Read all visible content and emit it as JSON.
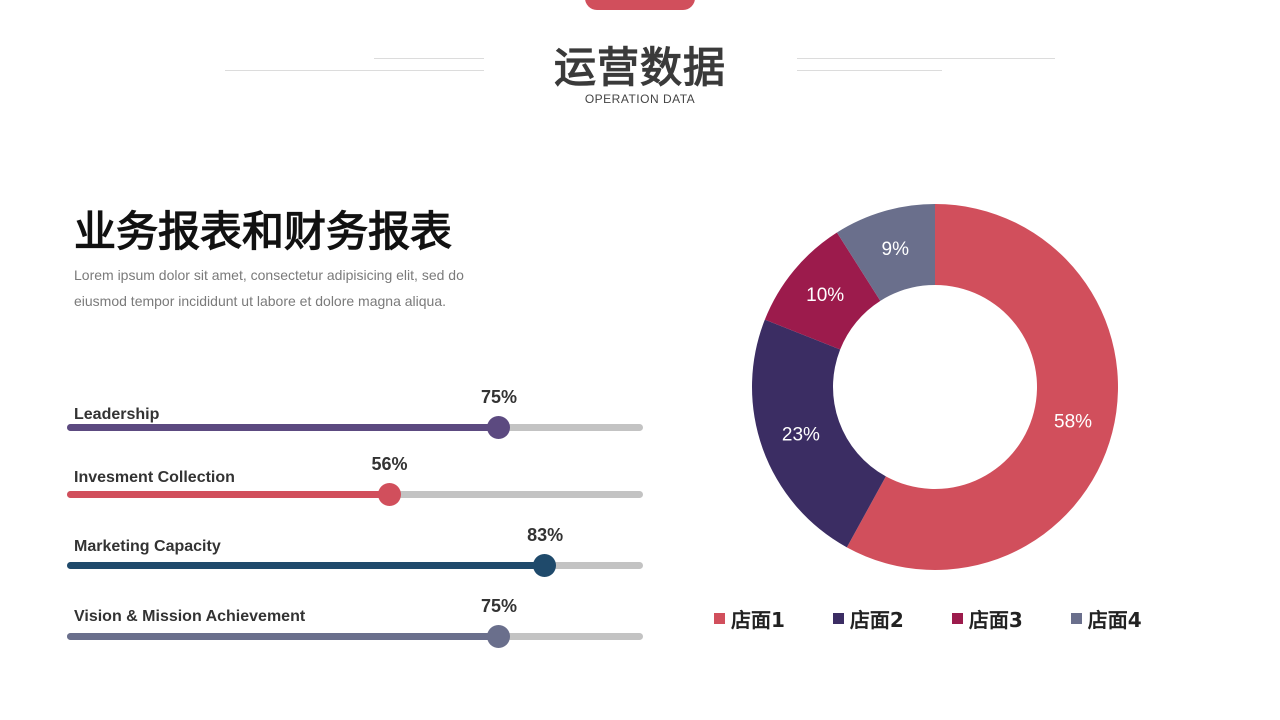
{
  "header": {
    "title": "运营数据",
    "subtitle": "OPERATION DATA"
  },
  "section": {
    "title": "业务报表和财务报表",
    "description_line1": "Lorem ipsum dolor sit amet, consectetur adipisicing elit, sed do",
    "description_line2": "eiusmod tempor incididunt ut labore et dolore magna aliqua."
  },
  "progress": [
    {
      "label": "Leadership",
      "value": 75,
      "value_text": "75%",
      "color": "#5c4a80"
    },
    {
      "label": "Invesment Collection",
      "value": 56,
      "value_text": "56%",
      "color": "#d14f5c"
    },
    {
      "label": "Marketing Capacity",
      "value": 83,
      "value_text": "83%",
      "color": "#1f4a6b"
    },
    {
      "label": "Vision & Mission Achievement",
      "value": 75,
      "value_text": "75%",
      "color": "#6a6f8c"
    }
  ],
  "chart_data": {
    "type": "pie",
    "variant": "donut",
    "categories": [
      "店面1",
      "店面2",
      "店面3",
      "店面4"
    ],
    "values": [
      58,
      23,
      10,
      9
    ],
    "value_labels": [
      "58%",
      "23%",
      "10%",
      "9%"
    ],
    "colors": [
      "#d14f5c",
      "#3b2d63",
      "#9c1b4c",
      "#6a6f8c"
    ],
    "legend_position": "bottom"
  },
  "colors": {
    "accent": "#d14f5c",
    "track": "#c3c3c3"
  }
}
